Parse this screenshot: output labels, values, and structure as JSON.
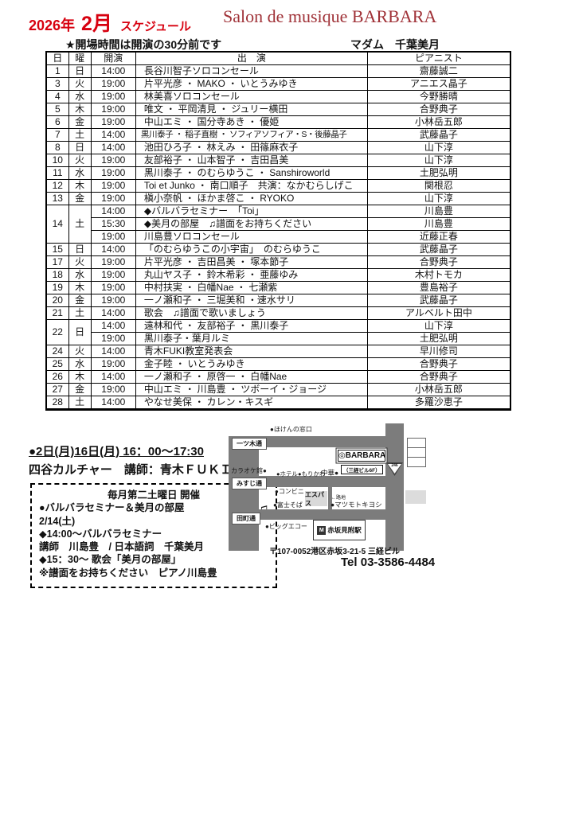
{
  "header": {
    "year": "2026年",
    "month": "2月",
    "schedule_label": "スケジュール",
    "salon_title": "Salon de musique BARBARA",
    "note": "★開場時間は開演の30分前です",
    "madam": "マダム　千葉美月"
  },
  "table": {
    "columns": [
      "日",
      "曜",
      "開演",
      "出　演",
      "ピアニスト"
    ],
    "rows": [
      {
        "day": "1",
        "dow": "日",
        "time": "14:00",
        "act": "長谷川智子ソロコンセール",
        "pianist": "齋藤誠二"
      },
      {
        "day": "3",
        "dow": "火",
        "time": "19:00",
        "act": "片平光彦 ・ MAKO ・ いとうみゆき",
        "pianist": "アニエス晶子"
      },
      {
        "day": "4",
        "dow": "水",
        "time": "19:00",
        "act": "林美喜ソロコンセール",
        "pianist": "今野勝晴"
      },
      {
        "day": "5",
        "dow": "木",
        "time": "19:00",
        "act": "唯文 ・ 平岡清見 ・ ジュリー横田",
        "pianist": "合野典子"
      },
      {
        "day": "6",
        "dow": "金",
        "time": "19:00",
        "act": "中山エミ ・ 国分寺あき ・ 優姫",
        "pianist": "小林岳五郎"
      },
      {
        "day": "7",
        "dow": "土",
        "time": "14:00",
        "act": "黒川泰子 ・ 稲子直樹 ・ ソフィアソフィア・S・後藤晶子",
        "pianist": "武藤晶子"
      },
      {
        "day": "8",
        "dow": "日",
        "time": "14:00",
        "act": "池田ひろ子 ・ 林えみ ・ 田篠麻衣子",
        "pianist": "山下淳"
      },
      {
        "day": "10",
        "dow": "火",
        "time": "19:00",
        "act": "友部裕子 ・ 山本智子 ・ 吉田昌美",
        "pianist": "山下淳"
      },
      {
        "day": "11",
        "dow": "水",
        "time": "19:00",
        "act": "黒川泰子 ・ のむらゆうこ ・ Sanshiroworld",
        "pianist": "土肥弘明"
      },
      {
        "day": "12",
        "dow": "木",
        "time": "19:00",
        "act": "Toi et Junko ・ 南口順子　共演：なかむらしげこ",
        "pianist": "関根忍"
      },
      {
        "day": "13",
        "dow": "金",
        "time": "19:00",
        "act": "槇小奈帆 ・ ほかま啓こ ・ RYOKO",
        "pianist": "山下淳"
      },
      {
        "day": "14",
        "dow": "土",
        "span": 3,
        "time": "14:00",
        "act": "◆バルバラセミナー　「Toi」",
        "pianist": "川島豊"
      },
      {
        "time": "15:30",
        "act": "◆美月の部屋　♫譜面をお持ちください",
        "pianist": "川島豊"
      },
      {
        "time": "19:00",
        "act": "川島豊ソロコンセール",
        "pianist": "近藤正春"
      },
      {
        "day": "15",
        "dow": "日",
        "time": "14:00",
        "act": "「のむらゆうこの小宇宙」　のむらゆうこ",
        "pianist": "武藤晶子"
      },
      {
        "day": "17",
        "dow": "火",
        "time": "19:00",
        "act": "片平光彦 ・ 吉田昌美 ・ 塚本節子",
        "pianist": "合野典子"
      },
      {
        "day": "18",
        "dow": "水",
        "time": "19:00",
        "act": "丸山ヤス子 ・ 鈴木希彩 ・ 亜藤ゆみ",
        "pianist": "木村トモカ"
      },
      {
        "day": "19",
        "dow": "木",
        "time": "19:00",
        "act": "中村扶実 ・ 白幡Nae ・ 七瀬紫",
        "pianist": "豊島裕子"
      },
      {
        "day": "20",
        "dow": "金",
        "time": "19:00",
        "act": "一ノ瀬和子 ・ 三堀美和 ・速水サリ",
        "pianist": "武藤晶子"
      },
      {
        "day": "21",
        "dow": "土",
        "time": "14:00",
        "act": "歌会　♫譜面で歌いましょう",
        "pianist": "アルベルト田中"
      },
      {
        "day": "22",
        "dow": "日",
        "span": 2,
        "time": "14:00",
        "act": "遠林和代 ・ 友部裕子 ・ 黒川泰子",
        "pianist": "山下淳"
      },
      {
        "time": "19:00",
        "act": "黒川泰子・葉月ルミ",
        "pianist": "土肥弘明"
      },
      {
        "day": "24",
        "dow": "火",
        "time": "14:00",
        "act": "青木FUKI教室発表会",
        "pianist": "早川修司"
      },
      {
        "day": "25",
        "dow": "水",
        "time": "19:00",
        "act": "金子睦 ・ いとうみゆき",
        "pianist": "合野典子"
      },
      {
        "day": "26",
        "dow": "木",
        "time": "14:00",
        "act": "一ノ瀬和子 ・ 原啓一 ・ 白幡Nae",
        "pianist": "合野典子"
      },
      {
        "day": "27",
        "dow": "金",
        "time": "19:00",
        "act": "中山エミ ・ 川島豊 ・ ツボーイ・ジョージ",
        "pianist": "小林岳五郎"
      },
      {
        "day": "28",
        "dow": "土",
        "time": "14:00",
        "act": "やなせ美保 ・ カレン・キスギ",
        "pianist": "多羅沙恵子"
      }
    ]
  },
  "culture": {
    "line1": "●2日(月)16日(月) 16：00～17:30",
    "line2": "四谷カルチャー　講師：青木ＦＵＫＩ"
  },
  "seminar_box": {
    "title": "毎月第二土曜日 開催",
    "line1": "●バルバラセミナー＆美月の部屋",
    "note_icon": "♫",
    "line2": "2/14(土)",
    "line3": "◆14:00～バルバラセミナー",
    "line4": "講師　川島豊　/ 日本語詞　千葉美月",
    "line5": "◆15：30～ 歌会「美月の部屋」",
    "line6": "※譜面をお持ちください　ピアノ川島豊"
  },
  "map": {
    "hoken": "●ほけんの窓口",
    "street1": "一ツ木通",
    "street2": "みすじ通",
    "street3": "田町通",
    "karaoke": "カラオケ館●",
    "hotel": "●ホテル●もりかわ",
    "chuka": "中華●",
    "barbara": "◎BARBARA",
    "building": "（三経ビル6F）",
    "espace": "エスパス",
    "conbini": "●コンビニ",
    "fujisoba": "●富士そば",
    "roji": "←路地",
    "matsumoto": "●マツモトキヨシ",
    "bigecho": "●ビッグエコー",
    "metro_m": "M",
    "station": "赤坂見附駅",
    "route246": "246"
  },
  "footer": {
    "address": "〒107-0052港区赤坂3-21-5 三経ビル",
    "tel": "Tel 03-3586-4484"
  },
  "colors": {
    "title_red": "#d7000f",
    "salon_red": "#a03238",
    "road_gray": "#7c7c7c",
    "box_gray": "#d9d9d9"
  }
}
